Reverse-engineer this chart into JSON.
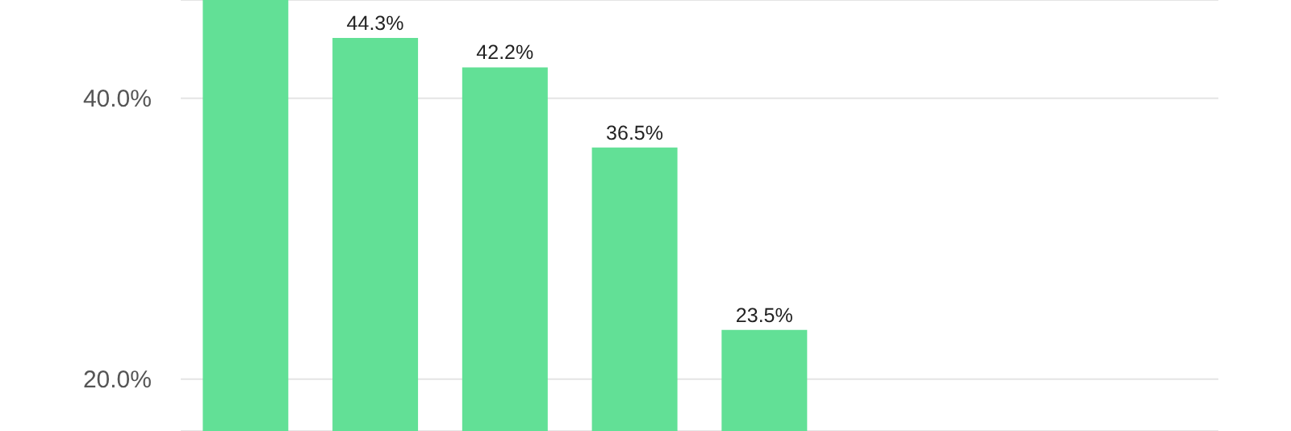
{
  "chart_data": {
    "type": "bar",
    "categories": [
      null,
      null,
      null,
      null,
      null,
      null,
      null,
      null
    ],
    "values": [
      47,
      44.3,
      42.2,
      36.5,
      23.5,
      null,
      null,
      null
    ],
    "value_labels": [
      null,
      "44.3%",
      "42.2%",
      "36.5%",
      "23.5%",
      null,
      null,
      null
    ],
    "color": "#62e096",
    "ylim": [
      16.3,
      47
    ],
    "yticks": [
      {
        "value": 20,
        "label": "20.0%"
      },
      {
        "value": 40,
        "label": "40.0%"
      }
    ],
    "grid": "y",
    "tick_labels": "y"
  }
}
